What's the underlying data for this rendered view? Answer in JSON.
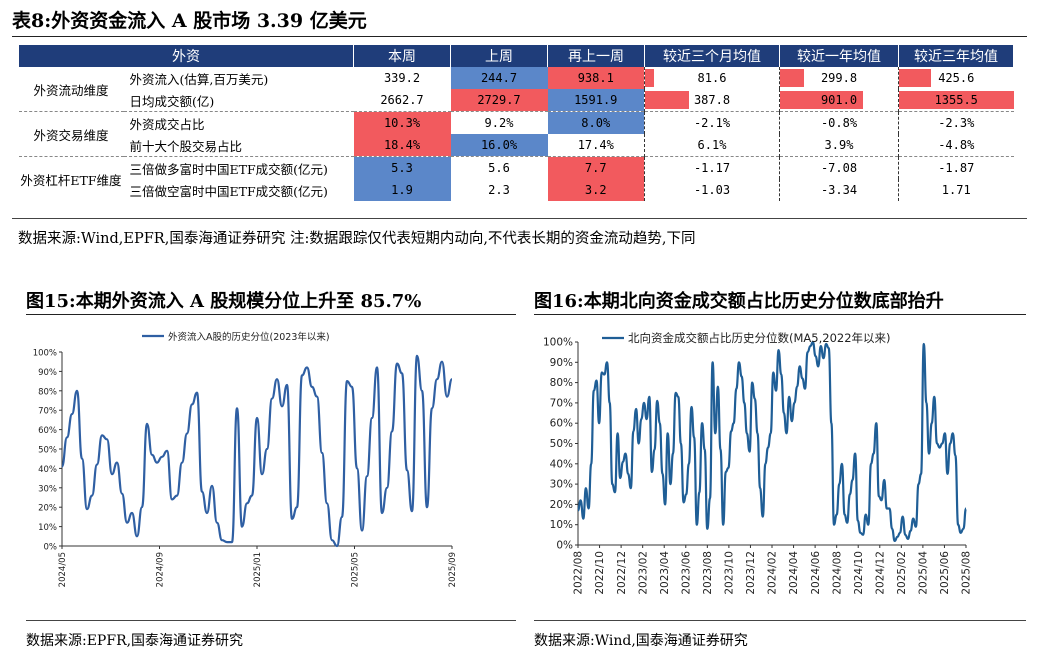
{
  "table8": {
    "title": "表8:外资资金流入 A 股市场 3.39 亿美元",
    "headers": [
      "外资",
      "本周",
      "上周",
      "再上一周",
      "较近三个月均值",
      "较近一年均值",
      "较近三年均值"
    ],
    "groups": [
      "外资流动维度",
      "外资交易维度",
      "外资杠杆ETF维度"
    ],
    "rows": [
      {
        "name": "外资流入(估算,百万美元)",
        "v1": "339.2",
        "v2": "244.7",
        "v3": "938.1",
        "v4": "81.6",
        "v5": "299.8",
        "v6": "425.6"
      },
      {
        "name": "日均成交额(亿)",
        "v1": "2662.7",
        "v2": "2729.7",
        "v3": "1591.9",
        "v4": "387.8",
        "v5": "901.0",
        "v6": "1355.5"
      },
      {
        "name": "外资成交占比",
        "v1": "10.3%",
        "v2": "9.2%",
        "v3": "8.0%",
        "v4": "-2.1%",
        "v5": "-0.8%",
        "v6": "-2.3%"
      },
      {
        "name": "前十大个股交易占比",
        "v1": "18.4%",
        "v2": "16.0%",
        "v3": "17.4%",
        "v4": "6.1%",
        "v5": "3.9%",
        "v6": "-4.8%"
      },
      {
        "name": "三倍做多富时中国ETF成交额(亿元)",
        "v1": "5.3",
        "v2": "5.6",
        "v3": "7.7",
        "v4": "-1.17",
        "v5": "-7.08",
        "v6": "-1.87"
      },
      {
        "name": "三倍做空富时中国ETF成交额(亿元)",
        "v1": "1.9",
        "v2": "2.3",
        "v3": "3.2",
        "v4": "-1.03",
        "v5": "-3.34",
        "v6": "1.71"
      }
    ],
    "bars": {
      "r0": {
        "v4": 0.07,
        "v5": 0.2,
        "v6": 0.28
      },
      "r1": {
        "v4": 0.33,
        "v5": 0.7,
        "v6": 1.0
      }
    },
    "colors": {
      "red": "#f25a5e",
      "blue": "#5b87c9",
      "header": "#1f3d7a"
    },
    "source": "数据来源:Wind,EPFR,国泰海通证券研究 注:数据跟踪仅代表短期内动向,不代表长期的资金流动趋势,下同"
  },
  "fig15": {
    "title": "图15:本期外资流入 A 股规模分位上升至 85.7%",
    "source": "数据来源:EPFR,国泰海通证券研究"
  },
  "fig16": {
    "title": "图16:本期北向资金成交额占比历史分位数底部抬升",
    "source": "数据来源:Wind,国泰海通证券研究"
  },
  "chart_data": [
    {
      "type": "line",
      "legend": "外资流入A股的历史分位(2023年以来)",
      "yticks": [
        "0%",
        "10%",
        "20%",
        "30%",
        "40%",
        "50%",
        "60%",
        "70%",
        "80%",
        "90%",
        "100%"
      ],
      "xticks": [
        "2024/05",
        "2024/09",
        "2025/01",
        "2025/05",
        "2025/09"
      ],
      "ylim": [
        0,
        100
      ],
      "color": "#2f5fa3",
      "y": [
        41,
        56,
        68,
        80,
        45,
        19,
        26,
        42,
        57,
        55,
        37,
        43,
        27,
        12,
        17,
        5,
        20,
        63,
        47,
        43,
        46,
        49,
        24,
        26,
        43,
        58,
        73,
        79,
        28,
        17,
        31,
        12,
        3,
        2,
        2,
        71,
        10,
        22,
        26,
        66,
        37,
        50,
        76,
        86,
        72,
        83,
        14,
        20,
        88,
        92,
        82,
        77,
        48,
        22,
        3,
        0,
        15,
        85,
        82,
        40,
        8,
        36,
        66,
        92,
        17,
        30,
        59,
        94,
        89,
        39,
        18,
        98,
        80,
        20,
        71,
        86,
        95,
        77,
        86
      ]
    },
    {
      "type": "line",
      "legend": "北向资金成交额占比历史分位数(MA5,2022年以来)",
      "yticks": [
        "0%",
        "10%",
        "20%",
        "30%",
        "40%",
        "50%",
        "60%",
        "70%",
        "80%",
        "90%",
        "100%"
      ],
      "xticks": [
        "2022/08",
        "2022/10",
        "2022/12",
        "2023/02",
        "2023/04",
        "2023/06",
        "2023/08",
        "2023/10",
        "2023/12",
        "2024/02",
        "2024/04",
        "2024/06",
        "2024/08",
        "2024/10",
        "2024/12",
        "2025/02",
        "2025/04",
        "2025/06",
        "2025/08"
      ],
      "ylim": [
        0,
        100
      ],
      "color": "#1f5e96",
      "y": [
        17,
        22,
        13,
        28,
        18,
        40,
        76,
        81,
        60,
        85,
        84,
        90,
        70,
        30,
        26,
        55,
        33,
        41,
        45,
        35,
        28,
        56,
        67,
        50,
        62,
        70,
        62,
        73,
        36,
        47,
        71,
        60,
        35,
        20,
        55,
        30,
        45,
        75,
        73,
        50,
        21,
        25,
        40,
        68,
        53,
        10,
        26,
        60,
        47,
        8,
        23,
        90,
        55,
        78,
        47,
        10,
        36,
        38,
        56,
        60,
        77,
        90,
        83,
        70,
        55,
        46,
        80,
        72,
        55,
        28,
        14,
        40,
        48,
        55,
        85,
        76,
        96,
        84,
        65,
        55,
        73,
        61,
        70,
        78,
        88,
        82,
        77,
        95,
        98,
        100,
        93,
        88,
        98,
        92,
        99,
        97,
        60,
        10,
        15,
        30,
        40,
        15,
        11,
        25,
        32,
        45,
        12,
        6,
        5,
        15,
        10,
        40,
        45,
        60,
        24,
        22,
        32,
        18,
        18,
        8,
        2,
        4,
        6,
        14,
        5,
        3,
        7,
        13,
        9,
        30,
        35,
        99,
        70,
        45,
        60,
        73,
        50,
        48,
        50,
        55,
        35,
        50,
        55,
        44,
        10,
        6,
        8,
        18
      ]
    }
  ]
}
